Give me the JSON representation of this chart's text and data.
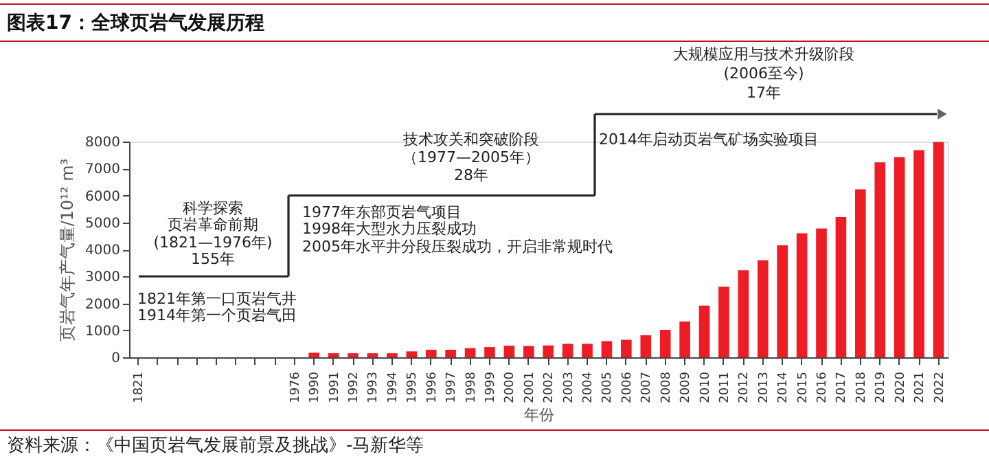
{
  "chart_data": {
    "type": "bar",
    "title": "图表17：全球页岩气发展历程",
    "xlabel": "年份",
    "ylabel": "页岩气年产气量/10¹² m³",
    "categories": [
      "1821",
      null,
      null,
      null,
      null,
      null,
      null,
      null,
      "1976",
      "1990",
      "1991",
      "1992",
      "1993",
      "1994",
      "1995",
      "1996",
      "1997",
      "1998",
      "1999",
      "2000",
      "2001",
      "2002",
      "2003",
      "2004",
      "2005",
      "2006",
      "2007",
      "2008",
      "2009",
      "2010",
      "2011",
      "2012",
      "2013",
      "2014",
      "2015",
      "2016",
      "2017",
      "2018",
      "2019",
      "2020",
      "2021",
      "2022"
    ],
    "values": [
      null,
      null,
      null,
      null,
      null,
      null,
      null,
      null,
      null,
      170,
      150,
      150,
      150,
      150,
      220,
      280,
      280,
      340,
      380,
      430,
      420,
      440,
      500,
      500,
      600,
      650,
      820,
      1020,
      1330,
      1920,
      2620,
      3230,
      3600,
      4150,
      4600,
      4780,
      5200,
      6230,
      7230,
      7420,
      7680,
      7980
    ],
    "color": "#ee1c25",
    "ylim": [
      0,
      8000
    ],
    "yticks": [
      0,
      1000,
      2000,
      3000,
      4000,
      5000,
      6000,
      7000,
      8000
    ],
    "grid": false,
    "annotations": [
      "科学探索",
      "页岩革命前期",
      "(1821—1976年)",
      "155年",
      "1821年第一口页岩气井",
      "1914年第一个页岩气田",
      "技术攻关和突破阶段",
      "（1977—2005年）",
      "28年",
      "1977年东部页岩气项目",
      "1998年大型水力压裂成功",
      "2005年水平井分段压裂成功，开启非常规时代",
      "大规模应用与技术升级阶段",
      "(2006至今)",
      "17年",
      "2014年启动页岩气矿场实验项目",
      "资料来源：《中国页岩气发展前景及挑战》-马新华等"
    ]
  }
}
